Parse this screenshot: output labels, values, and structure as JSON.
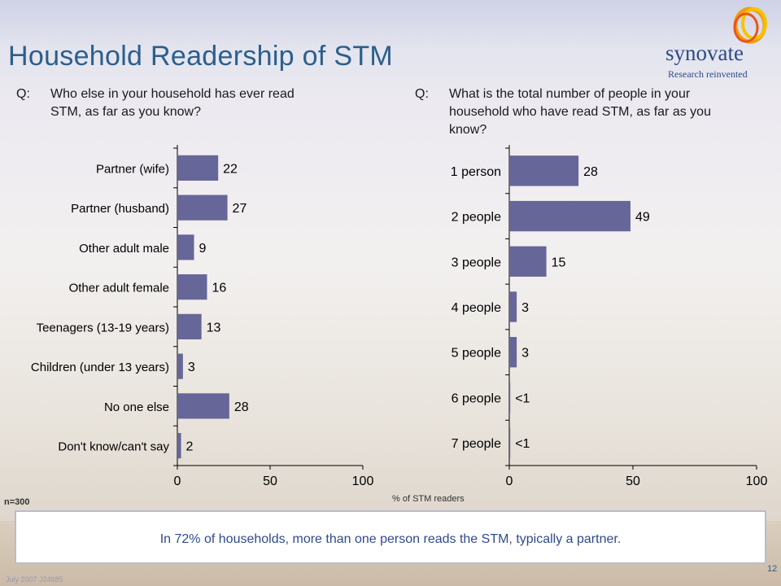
{
  "slide": {
    "title": "Household Readership of STM",
    "page_number": "12",
    "footer": "July 2007    J24685",
    "sample_note": "n=300",
    "axis_note": "% of STM readers",
    "callout": "In 72% of households, more than one person reads the STM, typically a partner.",
    "colors": {
      "bar": "#666699",
      "title": "#2c5e8c",
      "callout_text": "#2f4a8c"
    }
  },
  "logo": {
    "word": "synovate",
    "tagline": "Research reinvented"
  },
  "questions": [
    {
      "prefix": "Q:",
      "lines": [
        "Who else in your household has ever read",
        "STM, as far as you know?"
      ]
    },
    {
      "prefix": "Q:",
      "lines": [
        "What is the total number of people in your",
        "household who have read STM, as far as you",
        "know?"
      ]
    }
  ],
  "chart_data": [
    {
      "type": "bar",
      "orientation": "horizontal",
      "categories": [
        "Partner (wife)",
        "Partner (husband)",
        "Other adult male",
        "Other adult female",
        "Teenagers (13-19 years)",
        "Children (under 13 years)",
        "No one else",
        "Don't know/can't say"
      ],
      "values": [
        22,
        27,
        9,
        16,
        13,
        3,
        28,
        2
      ],
      "value_labels": [
        "22",
        "27",
        "9",
        "16",
        "13",
        "3",
        "28",
        "2"
      ],
      "xlim": [
        0,
        100
      ],
      "xticks": [
        "0",
        "50",
        "100"
      ],
      "xlabel": "",
      "grid": false
    },
    {
      "type": "bar",
      "orientation": "horizontal",
      "categories": [
        "1 person",
        "2 people",
        "3 people",
        "4 people",
        "5 people",
        "6 people",
        "7 people"
      ],
      "values": [
        28,
        49,
        15,
        3,
        3,
        0.4,
        0.4
      ],
      "value_labels": [
        "28",
        "49",
        "15",
        "3",
        "3",
        "<1",
        "<1"
      ],
      "xlim": [
        0,
        100
      ],
      "xticks": [
        "0",
        "50",
        "100"
      ],
      "xlabel": "% of STM readers",
      "grid": false
    }
  ]
}
